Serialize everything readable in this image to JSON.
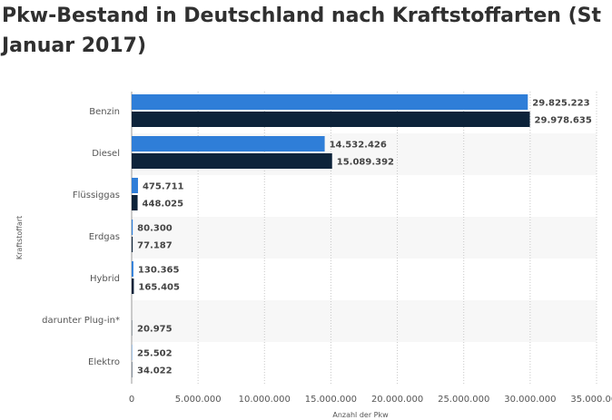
{
  "title_line1": "Pkw-Bestand in Deutschland nach Kraftstoffarten (St",
  "title_line2": "Januar 2017)",
  "chart_data": {
    "type": "bar",
    "orientation": "horizontal",
    "categories": [
      "Benzin",
      "Diesel",
      "Flüssiggas",
      "Erdgas",
      "Hybrid",
      "darunter Plug-in*",
      "Elektro"
    ],
    "series": [
      {
        "color": "#2f7ed8",
        "values": [
          29825223,
          14532426,
          475711,
          80300,
          130365,
          null,
          25502
        ],
        "labels": [
          "29.825.223",
          "14.532.426",
          "475.711",
          "80.300",
          "130.365",
          "",
          "25.502"
        ]
      },
      {
        "color": "#0d233a",
        "values": [
          29978635,
          15089392,
          448025,
          77187,
          165405,
          20975,
          34022
        ],
        "labels": [
          "29.978.635",
          "15.089.392",
          "448.025",
          "77.187",
          "165.405",
          "20.975",
          "34.022"
        ]
      }
    ],
    "xlim": [
      0,
      35000000
    ],
    "xticks": [
      0,
      5000000,
      10000000,
      15000000,
      20000000,
      25000000,
      30000000,
      35000000
    ],
    "xtick_labels": [
      "0",
      "5.000.000",
      "10.000.000",
      "15.000.000",
      "20.000.000",
      "25.000.000",
      "30.000.000",
      "35.000.000"
    ],
    "xlabel": "Anzahl der Pkw",
    "ylabel": "Kraftstoffart",
    "grid": true,
    "legend": "none"
  }
}
